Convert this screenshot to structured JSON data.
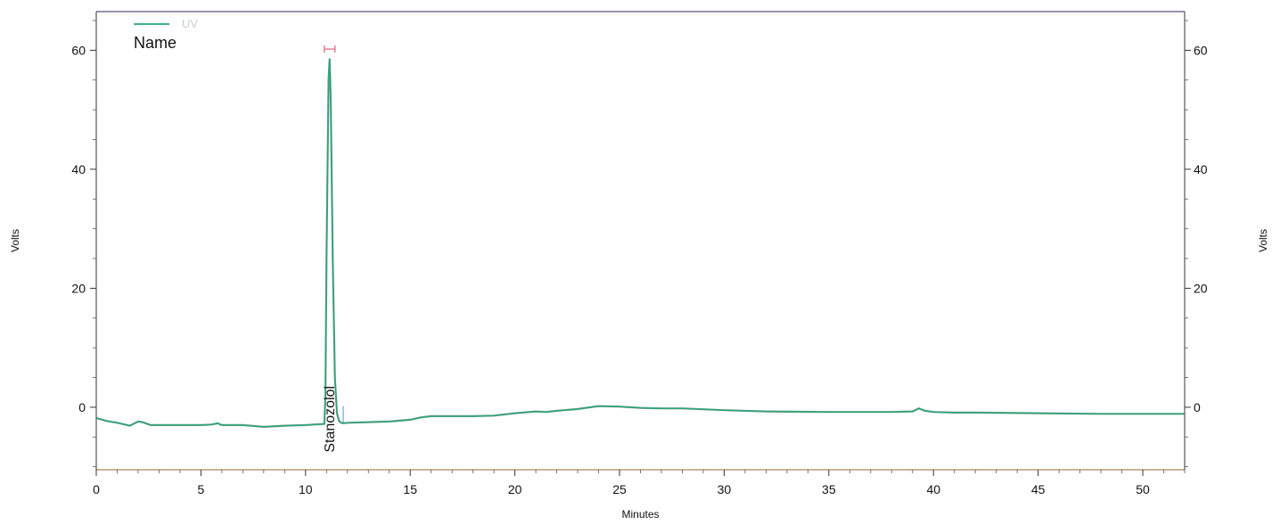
{
  "chart_data": {
    "type": "line",
    "title": "",
    "xlabel": "Minutes",
    "ylabel_left": "Volts",
    "ylabel_right": "Volts",
    "xlim": [
      0,
      52
    ],
    "ylim": [
      -10.5,
      66.5
    ],
    "x_ticks": [
      0,
      5,
      10,
      15,
      20,
      25,
      30,
      35,
      40,
      45,
      50
    ],
    "y_ticks": [
      0,
      20,
      40,
      60
    ],
    "grid": false,
    "legend": {
      "position": "top-left",
      "header": "Name",
      "entries": [
        "UV"
      ]
    },
    "series": [
      {
        "name": "UV",
        "color": "#22aa77",
        "x": [
          0,
          0.5,
          1,
          1.6,
          2,
          2.2,
          2.6,
          3,
          4,
          5,
          5.5,
          5.8,
          6,
          7,
          8,
          9,
          10,
          10.9,
          10.95,
          11.0,
          11.1,
          11.15,
          11.2,
          11.3,
          11.4,
          11.5,
          11.6,
          11.7,
          11.8,
          12,
          13,
          14,
          15,
          15.5,
          16,
          16.5,
          17,
          18,
          19,
          20,
          21,
          21.5,
          22,
          23,
          24,
          25,
          26,
          27,
          28,
          30,
          32,
          35,
          38,
          39,
          39.3,
          39.6,
          40,
          41,
          42,
          45,
          48,
          50,
          52
        ],
        "y": [
          -1.8,
          -2.3,
          -2.6,
          -3.1,
          -2.4,
          -2.5,
          -3.0,
          -3.0,
          -3.0,
          -3.0,
          -2.9,
          -2.7,
          -3.0,
          -3.0,
          -3.3,
          -3.1,
          -3.0,
          -2.8,
          2.0,
          25.0,
          55.0,
          58.6,
          52.0,
          25.0,
          5.0,
          -1.0,
          -2.3,
          -2.6,
          -2.7,
          -2.6,
          -2.5,
          -2.4,
          -2.1,
          -1.7,
          -1.5,
          -1.5,
          -1.5,
          -1.5,
          -1.4,
          -1.0,
          -0.7,
          -0.8,
          -0.6,
          -0.3,
          0.2,
          0.1,
          -0.1,
          -0.2,
          -0.2,
          -0.5,
          -0.7,
          -0.8,
          -0.8,
          -0.7,
          -0.2,
          -0.6,
          -0.8,
          -0.9,
          -0.9,
          -1.0,
          -1.1,
          -1.1,
          -1.1
        ]
      }
    ],
    "peaks": [
      {
        "name": "Stanozolol",
        "x": 11.15
      }
    ]
  }
}
